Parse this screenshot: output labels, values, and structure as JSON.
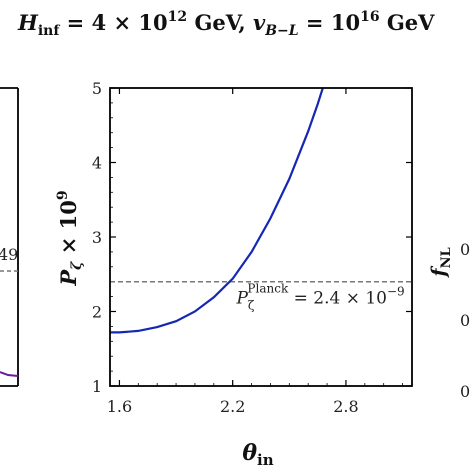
{
  "header": {
    "title_parts": {
      "H": "H",
      "H_sub": "inf",
      "eq1": " = 4 × 10",
      "exp1": "12",
      "unit1": " GeV, ",
      "v": "v",
      "v_sub": "B−L",
      "eq2": " = 10",
      "exp2": "16",
      "unit2": " GeV"
    }
  },
  "left_panel": {
    "tick_fragment": "49"
  },
  "right_panel": {
    "ylabel_parts": {
      "P": "P",
      "sub": "ζ",
      "times": " × 10",
      "exp": "9"
    },
    "tick_labels": [
      "0",
      "0",
      "0"
    ]
  },
  "chart_data": {
    "type": "line",
    "title": "",
    "xlabel": "θ_in",
    "ylabel": "P_ζ × 10^9",
    "xlim": [
      1.55,
      3.15
    ],
    "ylim": [
      1,
      5
    ],
    "xticks": [
      1.6,
      2.2,
      2.8
    ],
    "yticks": [
      1,
      2,
      3,
      4,
      5
    ],
    "xtick_labels": [
      "1.6",
      "2.2",
      "2.8"
    ],
    "ytick_labels": [
      "1",
      "2",
      "3",
      "4",
      "5"
    ],
    "series": [
      {
        "color": "#1428b4",
        "x": [
          1.55,
          1.6,
          1.7,
          1.8,
          1.9,
          2.0,
          2.1,
          2.2,
          2.3,
          2.4,
          2.5,
          2.6,
          2.65,
          2.7
        ],
        "y": [
          1.72,
          1.72,
          1.74,
          1.79,
          1.87,
          2.0,
          2.19,
          2.44,
          2.8,
          3.25,
          3.78,
          4.42,
          4.78,
          5.18
        ]
      }
    ],
    "reference_line": {
      "y": 2.4,
      "color": "#777777",
      "annotation": {
        "P": "P",
        "sub": "ζ",
        "sup": "Planck",
        "rest": " = 2.4 × 10",
        "exp": "−9"
      }
    },
    "grid": false
  }
}
